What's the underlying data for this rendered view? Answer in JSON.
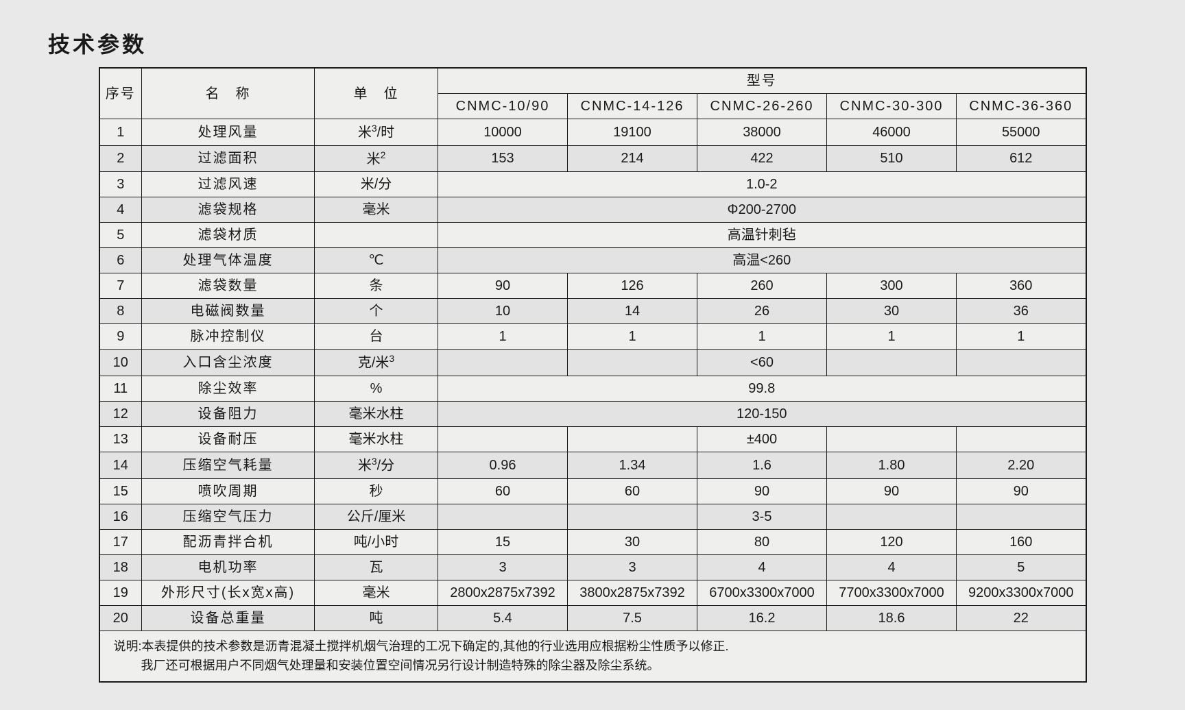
{
  "title": "技术参数",
  "headers": {
    "sn": "序号",
    "name": "名　称",
    "unit": "单　位",
    "model_group": "型号"
  },
  "models": [
    "CNMC-10/90",
    "CNMC-14-126",
    "CNMC-26-260",
    "CNMC-30-300",
    "CNMC-36-360"
  ],
  "rows": [
    {
      "sn": "1",
      "name": "处理风量",
      "unit_html": "米<sup>3</sup>/时",
      "vals": [
        "10000",
        "19100",
        "38000",
        "46000",
        "55000"
      ]
    },
    {
      "sn": "2",
      "name": "过滤面积",
      "unit_html": "米<sup>2</sup>",
      "vals": [
        "153",
        "214",
        "422",
        "510",
        "612"
      ]
    },
    {
      "sn": "3",
      "name": "过滤风速",
      "unit_html": "米/分",
      "merged": "1.0-2"
    },
    {
      "sn": "4",
      "name": "滤袋规格",
      "unit_html": "毫米",
      "merged": "Φ200-2700"
    },
    {
      "sn": "5",
      "name": "滤袋材质",
      "unit_html": "",
      "merged": "高温针刺毡"
    },
    {
      "sn": "6",
      "name": "处理气体温度",
      "unit_html": "℃",
      "merged": "高温<260"
    },
    {
      "sn": "7",
      "name": "滤袋数量",
      "unit_html": "条",
      "vals": [
        "90",
        "126",
        "260",
        "300",
        "360"
      ]
    },
    {
      "sn": "8",
      "name": "电磁阀数量",
      "unit_html": "个",
      "vals": [
        "10",
        "14",
        "26",
        "30",
        "36"
      ]
    },
    {
      "sn": "9",
      "name": "脉冲控制仪",
      "unit_html": "台",
      "vals": [
        "1",
        "1",
        "1",
        "1",
        "1"
      ]
    },
    {
      "sn": "10",
      "name": "入口含尘浓度",
      "unit_html": "克/米<sup>3</sup>",
      "vals": [
        "",
        "",
        "<60",
        "",
        ""
      ]
    },
    {
      "sn": "11",
      "name": "除尘效率",
      "unit_html": "%",
      "merged": "99.8"
    },
    {
      "sn": "12",
      "name": "设备阻力",
      "unit_html": "毫米水柱",
      "merged": "120-150"
    },
    {
      "sn": "13",
      "name": "设备耐压",
      "unit_html": "毫米水柱",
      "vals": [
        "",
        "",
        "±400",
        "",
        ""
      ]
    },
    {
      "sn": "14",
      "name": "压缩空气耗量",
      "unit_html": "米<sup>3</sup>/分",
      "vals": [
        "0.96",
        "1.34",
        "1.6",
        "1.80",
        "2.20"
      ]
    },
    {
      "sn": "15",
      "name": "喷吹周期",
      "unit_html": "秒",
      "vals": [
        "60",
        "60",
        "90",
        "90",
        "90"
      ]
    },
    {
      "sn": "16",
      "name": "压缩空气压力",
      "unit_html": "公斤/厘米",
      "vals": [
        "",
        "",
        "3-5",
        "",
        ""
      ]
    },
    {
      "sn": "17",
      "name": "配沥青拌合机",
      "unit_html": "吨/小时",
      "vals": [
        "15",
        "30",
        "80",
        "120",
        "160"
      ]
    },
    {
      "sn": "18",
      "name": "电机功率",
      "unit_html": "瓦",
      "vals": [
        "3",
        "3",
        "4",
        "4",
        "5"
      ]
    },
    {
      "sn": "19",
      "name": "外形尺寸(长x宽x高)",
      "unit_html": "毫米",
      "vals": [
        "2800x2875x7392",
        "3800x2875x7392",
        "6700x3300x7000",
        "7700x3300x7000",
        "9200x3300x7000"
      ]
    },
    {
      "sn": "20",
      "name": "设备总重量",
      "unit_html": "吨",
      "vals": [
        "5.4",
        "7.5",
        "16.2",
        "18.6",
        "22"
      ]
    }
  ],
  "note_lines": [
    "说明:本表提供的技术参数是沥青混凝土搅拌机烟气治理的工况下确定的,其他的行业选用应根据粉尘性质予以修正.",
    "我厂还可根据用户不同烟气处理量和安装位置空间情况另行设计制造特殊的除尘器及除尘系统。"
  ],
  "style": {
    "border_color": "#1a1a1a",
    "bg": "#e8e9e8",
    "table_bg": "#efefee",
    "alt_bg": "#e2e3e2",
    "title_fontsize": 32,
    "cell_fontsize": 20,
    "note_fontsize": 18
  }
}
